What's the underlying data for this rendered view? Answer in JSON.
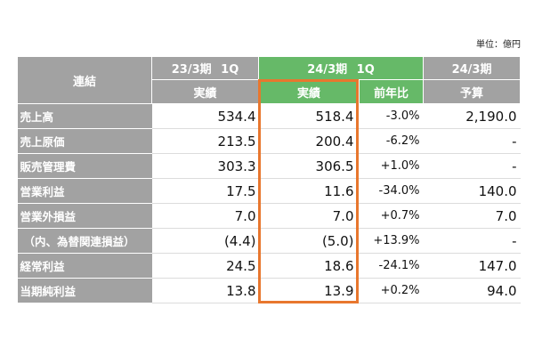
{
  "unit_label": "単位：億円",
  "header": {
    "consolidated": "連結",
    "prev_period": "23/3期 1Q",
    "curr_period": "24/3期 1Q",
    "budget_period": "24/3期",
    "prev_actual": "実績",
    "curr_actual": "実績",
    "yoy": "前年比",
    "budget": "予算"
  },
  "rows": [
    {
      "label": "売上高",
      "prev": "534.4",
      "curr": "518.4",
      "yoy": "-3.0%",
      "budget": "2,190.0"
    },
    {
      "label": "売上原価",
      "prev": "213.5",
      "curr": "200.4",
      "yoy": "-6.2%",
      "budget": "-"
    },
    {
      "label": "販売管理費",
      "prev": "303.3",
      "curr": "306.5",
      "yoy": "+1.0%",
      "budget": "-"
    },
    {
      "label": "営業利益",
      "prev": "17.5",
      "curr": "11.6",
      "yoy": "-34.0%",
      "budget": "140.0"
    },
    {
      "label": "営業外損益",
      "prev": "7.0",
      "curr": "7.0",
      "yoy": "+0.7%",
      "budget": "7.0"
    },
    {
      "label": "（内、為替関連損益）",
      "prev": "(4.4)",
      "curr": "(5.0)",
      "yoy": "+13.9%",
      "budget": "-"
    },
    {
      "label": "経常利益",
      "prev": "24.5",
      "curr": "18.6",
      "yoy": "-24.1%",
      "budget": "147.0"
    },
    {
      "label": "当期純利益",
      "prev": "13.8",
      "curr": "13.9",
      "yoy": "+0.2%",
      "budget": "94.0"
    }
  ],
  "colors": {
    "header_gray": "#a2a2a2",
    "header_green": "#66b968",
    "highlight_orange": "#e8772e"
  }
}
